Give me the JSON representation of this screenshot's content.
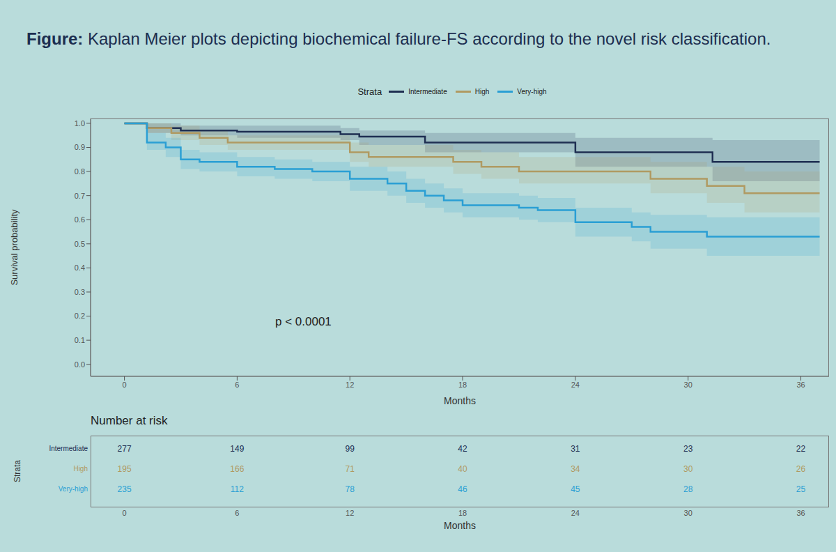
{
  "chart_data": {
    "type": "line",
    "line_style": "step",
    "title": "Figure: Kaplan Meier plots depicting biochemical failure-FS according to the novel risk classification.",
    "legend": "top",
    "legend_title": "Strata",
    "grid": false,
    "x_label": "Months",
    "y_label": "Survival probability",
    "annotation": "p < 0.0001",
    "xlim": [
      -1.8,
      37.5
    ],
    "xticks": [
      0,
      6,
      12,
      18,
      24,
      30,
      36
    ],
    "ylim": [
      -0.05,
      1.02
    ],
    "yticks": [
      {
        "value": 0,
        "label": "0.0"
      },
      0.1,
      0.2,
      0.3,
      0.4,
      0.5,
      0.6,
      0.7,
      0.8,
      0.9,
      {
        "value": 1,
        "label": "1.0"
      }
    ],
    "series": [
      {
        "name": "Intermediate",
        "color": "#1f2f52",
        "x": [
          0,
          1.2,
          3,
          6,
          11.5,
          12.5,
          16,
          24,
          31.3,
          37
        ],
        "values": [
          1,
          0.98,
          0.97,
          0.965,
          0.955,
          0.945,
          0.92,
          0.88,
          0.84,
          0.84
        ],
        "lower": [
          1,
          0.96,
          0.95,
          0.94,
          0.93,
          0.91,
          0.88,
          0.82,
          0.76,
          0.76
        ],
        "upper": [
          1,
          1,
          0.99,
          0.99,
          0.98,
          0.97,
          0.96,
          0.94,
          0.93,
          0.93
        ],
        "at_risk": [
          277,
          149,
          99,
          42,
          31,
          23,
          22
        ]
      },
      {
        "name": "High",
        "color": "#b09a62",
        "x": [
          0,
          1.2,
          2.5,
          4,
          5.5,
          12,
          13,
          17.5,
          19,
          21,
          28,
          31,
          33,
          37
        ],
        "values": [
          1,
          0.98,
          0.96,
          0.94,
          0.92,
          0.88,
          0.86,
          0.84,
          0.82,
          0.8,
          0.77,
          0.74,
          0.71,
          0.71
        ],
        "lower": [
          1,
          0.96,
          0.93,
          0.91,
          0.89,
          0.84,
          0.82,
          0.79,
          0.77,
          0.75,
          0.71,
          0.67,
          0.63,
          0.63
        ],
        "upper": [
          1,
          1,
          0.99,
          0.97,
          0.95,
          0.92,
          0.91,
          0.89,
          0.88,
          0.86,
          0.84,
          0.82,
          0.8,
          0.8
        ],
        "at_risk": [
          195,
          166,
          71,
          40,
          34,
          30,
          26
        ]
      },
      {
        "name": "Very-high",
        "color": "#2a9fd4",
        "x": [
          0,
          1.2,
          2.2,
          3,
          4,
          6,
          8,
          10,
          12,
          14,
          15,
          16,
          17,
          18,
          21,
          22,
          24,
          27,
          28,
          31,
          37
        ],
        "values": [
          1,
          0.92,
          0.9,
          0.85,
          0.84,
          0.82,
          0.81,
          0.8,
          0.77,
          0.75,
          0.72,
          0.7,
          0.68,
          0.66,
          0.65,
          0.64,
          0.59,
          0.57,
          0.55,
          0.53,
          0.53
        ],
        "lower": [
          1,
          0.89,
          0.86,
          0.81,
          0.8,
          0.78,
          0.77,
          0.76,
          0.72,
          0.7,
          0.67,
          0.65,
          0.63,
          0.61,
          0.6,
          0.59,
          0.53,
          0.51,
          0.48,
          0.45,
          0.45
        ],
        "upper": [
          1,
          0.96,
          0.94,
          0.89,
          0.88,
          0.86,
          0.85,
          0.84,
          0.82,
          0.8,
          0.77,
          0.75,
          0.73,
          0.71,
          0.7,
          0.69,
          0.65,
          0.63,
          0.62,
          0.61,
          0.61
        ],
        "at_risk": [
          235,
          112,
          78,
          46,
          45,
          28,
          25
        ]
      }
    ],
    "risk_table": {
      "title": "Number at risk",
      "y_label": "Strata",
      "x_label": "Months"
    }
  }
}
